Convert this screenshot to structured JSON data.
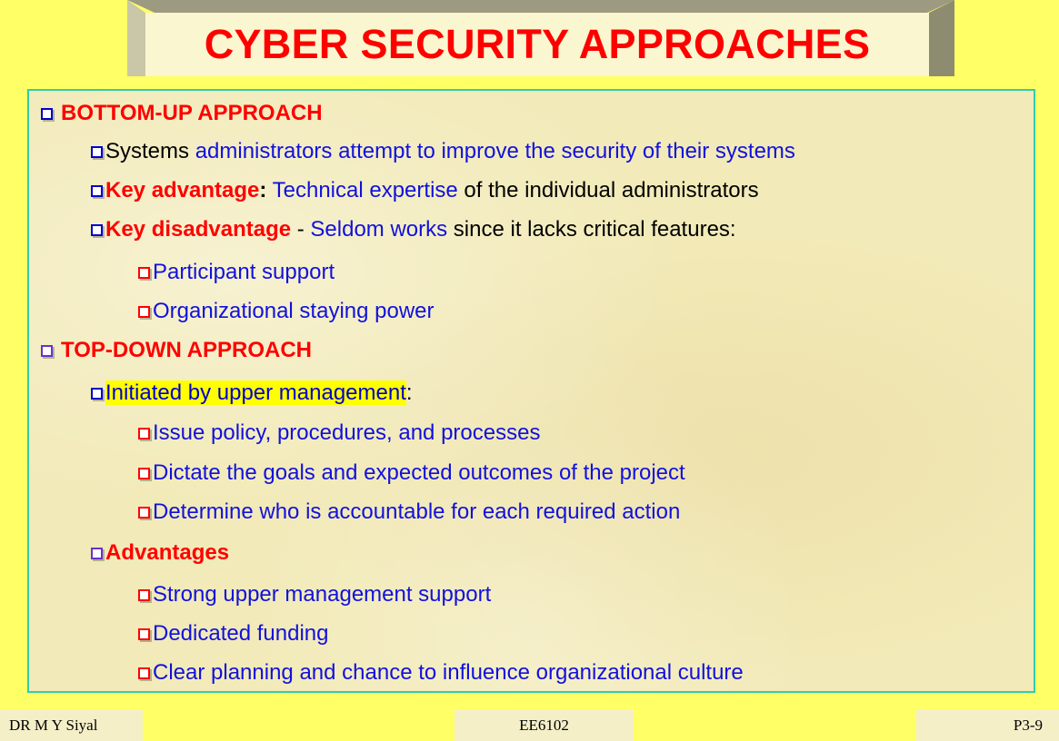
{
  "title": "CYBER SECURITY APPROACHES",
  "sections": {
    "bottom_up": {
      "heading": "BOTTOM-UP APPROACH",
      "item1": {
        "a": "Systems ",
        "b": "administrators attempt to improve the security of their systems"
      },
      "item2": {
        "a": "Key advantage",
        "b": ":",
        "c": " Technical expertise",
        "d": " of the individual administrators"
      },
      "item3": {
        "a": "Key disadvantage",
        "b": " - ",
        "c": "Seldom works",
        "d": " since it lacks critical features:"
      },
      "sub1": "Participant support",
      "sub2": "Organizational staying power"
    },
    "top_down": {
      "heading": "TOP-DOWN APPROACH",
      "item1": {
        "a": "Initiated by upper management",
        "b": ":"
      },
      "sub1": "Issue policy, procedures, and processes",
      "sub2": "Dictate the goals and expected outcomes of the project",
      "sub3": "Determine who is accountable for each required action",
      "advantages": "Advantages",
      "adv1": "Strong upper management support",
      "adv2": "Dedicated funding",
      "adv3": "Clear planning and chance to influence organizational culture"
    }
  },
  "footer": {
    "left": "DR M Y Siyal",
    "center": "EE6102",
    "right": "P3-9"
  },
  "colors": {
    "heading": "#FF0000",
    "body_blue": "#1111DD",
    "background": "#FFFF66",
    "border": "#33CCAA",
    "highlight": "#FFFF00"
  }
}
